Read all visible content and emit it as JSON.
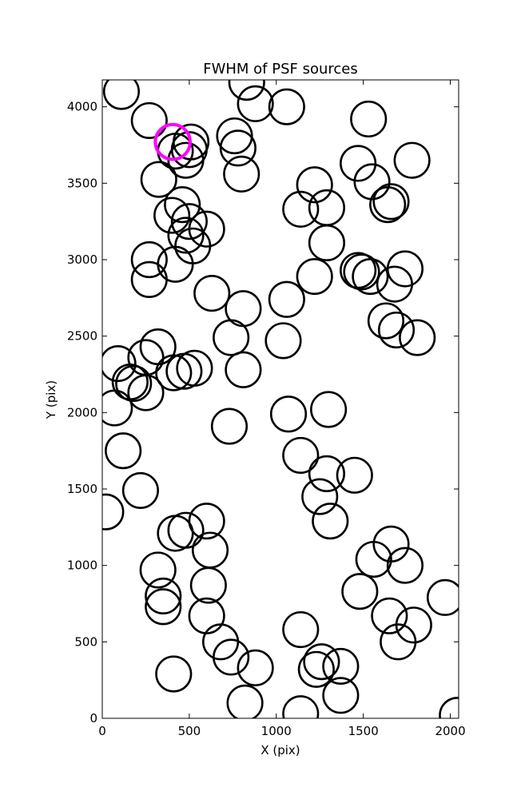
{
  "chart_data": {
    "type": "scatter",
    "title": "FWHM of PSF sources",
    "xlabel": "X (pix)",
    "ylabel": "Y (pix)",
    "xlim": [
      0,
      2048
    ],
    "ylim": [
      0,
      4176
    ],
    "xticks": [
      0,
      500,
      1000,
      1500,
      2000
    ],
    "yticks": [
      0,
      500,
      1000,
      1500,
      2000,
      2500,
      3000,
      3500,
      4000
    ],
    "grid": false,
    "marker": "open-circle",
    "circle_radius_pix": 100,
    "colors": {
      "sources": "#000000",
      "highlight": "#ff00ff"
    },
    "series": [
      {
        "role": "sources",
        "points": [
          [
            110,
            4100
          ],
          [
            270,
            3910
          ],
          [
            325,
            3525
          ],
          [
            420,
            3710
          ],
          [
            480,
            3650
          ],
          [
            500,
            3720
          ],
          [
            510,
            3770
          ],
          [
            760,
            3810
          ],
          [
            780,
            3730
          ],
          [
            800,
            3560
          ],
          [
            830,
            4160
          ],
          [
            880,
            4020
          ],
          [
            1060,
            4000
          ],
          [
            1220,
            3490
          ],
          [
            1140,
            3330
          ],
          [
            1290,
            3340
          ],
          [
            1290,
            3110
          ],
          [
            1220,
            2890
          ],
          [
            1060,
            2740
          ],
          [
            1040,
            2470
          ],
          [
            1070,
            1990
          ],
          [
            1300,
            2020
          ],
          [
            1140,
            1720
          ],
          [
            1290,
            1600
          ],
          [
            1250,
            1450
          ],
          [
            1310,
            1290
          ],
          [
            1450,
            1590
          ],
          [
            1470,
            3630
          ],
          [
            1530,
            3920
          ],
          [
            1550,
            3510
          ],
          [
            1640,
            3360
          ],
          [
            1660,
            3380
          ],
          [
            1780,
            3650
          ],
          [
            1470,
            2930
          ],
          [
            1490,
            2920
          ],
          [
            1540,
            2890
          ],
          [
            1680,
            2840
          ],
          [
            1740,
            2940
          ],
          [
            1630,
            2600
          ],
          [
            1690,
            2540
          ],
          [
            1810,
            2490
          ],
          [
            1560,
            1040
          ],
          [
            1660,
            1140
          ],
          [
            1740,
            1000
          ],
          [
            1480,
            830
          ],
          [
            1650,
            670
          ],
          [
            1700,
            500
          ],
          [
            1790,
            610
          ],
          [
            1970,
            790
          ],
          [
            2040,
            20
          ],
          [
            1140,
            580
          ],
          [
            1140,
            30
          ],
          [
            1230,
            320
          ],
          [
            1260,
            370
          ],
          [
            1370,
            340
          ],
          [
            1370,
            150
          ],
          [
            820,
            100
          ],
          [
            880,
            330
          ],
          [
            740,
            400
          ],
          [
            680,
            500
          ],
          [
            600,
            670
          ],
          [
            610,
            870
          ],
          [
            620,
            1100
          ],
          [
            600,
            1290
          ],
          [
            480,
            1230
          ],
          [
            420,
            1210
          ],
          [
            320,
            970
          ],
          [
            350,
            800
          ],
          [
            350,
            730
          ],
          [
            410,
            290
          ],
          [
            220,
            1490
          ],
          [
            120,
            1750
          ],
          [
            20,
            1350
          ],
          [
            70,
            2030
          ],
          [
            90,
            2320
          ],
          [
            160,
            2200
          ],
          [
            180,
            2190
          ],
          [
            250,
            2130
          ],
          [
            250,
            2360
          ],
          [
            320,
            2430
          ],
          [
            410,
            2260
          ],
          [
            470,
            2270
          ],
          [
            530,
            2290
          ],
          [
            740,
            2490
          ],
          [
            810,
            2680
          ],
          [
            810,
            2280
          ],
          [
            730,
            1910
          ],
          [
            630,
            2780
          ],
          [
            270,
            3000
          ],
          [
            270,
            2870
          ],
          [
            420,
            2970
          ],
          [
            400,
            3290
          ],
          [
            460,
            3360
          ],
          [
            480,
            3160
          ],
          [
            500,
            3250
          ],
          [
            520,
            3090
          ],
          [
            600,
            3200
          ]
        ]
      },
      {
        "role": "highlight",
        "points": [
          [
            405,
            3770
          ]
        ]
      }
    ]
  }
}
